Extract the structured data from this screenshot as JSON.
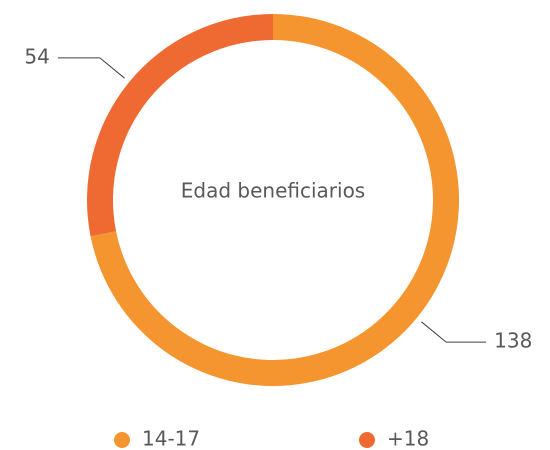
{
  "chart_data": {
    "type": "pie",
    "title": "Edad beneficiarios",
    "categories": [
      "14-17",
      "+18"
    ],
    "values": [
      138,
      54
    ],
    "colors": [
      "#f4952f",
      "#ef6a32"
    ]
  }
}
